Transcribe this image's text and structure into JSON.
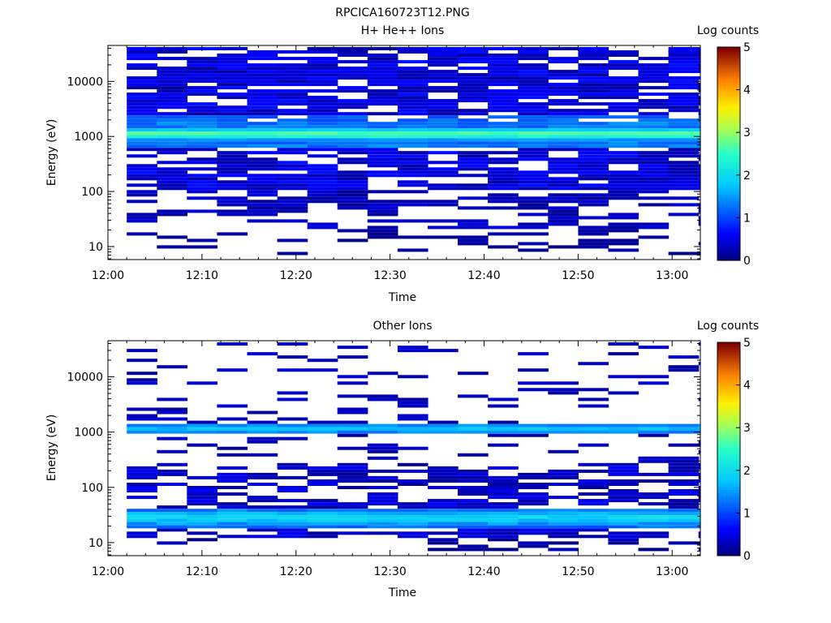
{
  "figure": {
    "title": "RPCICA160723T12.PNG"
  },
  "chart_data": [
    {
      "type": "heatmap",
      "title": "H+ He++ Ions",
      "xlabel": "Time",
      "ylabel": "Energy (eV)",
      "xlim": [
        "12:00",
        "13:03"
      ],
      "ylim": [
        5.8,
        45000
      ],
      "y_scale": "log",
      "x_ticks": [
        "12:00",
        "12:10",
        "12:20",
        "12:30",
        "12:40",
        "12:50",
        "13:00"
      ],
      "y_ticks": [
        "10",
        "100",
        "1000",
        "10000"
      ],
      "colorbar": {
        "label": "Log counts",
        "range": [
          0,
          5
        ],
        "ticks": [
          "0",
          "1",
          "2",
          "3",
          "4",
          "5"
        ]
      },
      "notes": {
        "peak_band_energy_eV": 1100,
        "peak_log_counts": 2.8,
        "time_bin_minutes": 3.2,
        "empty_cells": "white"
      }
    },
    {
      "type": "heatmap",
      "title": "Other Ions",
      "xlabel": "Time",
      "ylabel": "Energy (eV)",
      "xlim": [
        "12:00",
        "13:03"
      ],
      "ylim": [
        5.8,
        45000
      ],
      "y_scale": "log",
      "x_ticks": [
        "12:00",
        "12:10",
        "12:20",
        "12:30",
        "12:40",
        "12:50",
        "13:00"
      ],
      "y_ticks": [
        "10",
        "100",
        "1000",
        "10000"
      ],
      "colorbar": {
        "label": "Log counts",
        "range": [
          0,
          5
        ],
        "ticks": [
          "0",
          "1",
          "2",
          "3",
          "4",
          "5"
        ]
      },
      "notes": {
        "bands_energy_eV": [
          1150,
          28
        ],
        "peak_log_counts": 2.0,
        "time_bin_minutes": 3.2,
        "empty_cells": "white"
      }
    }
  ]
}
